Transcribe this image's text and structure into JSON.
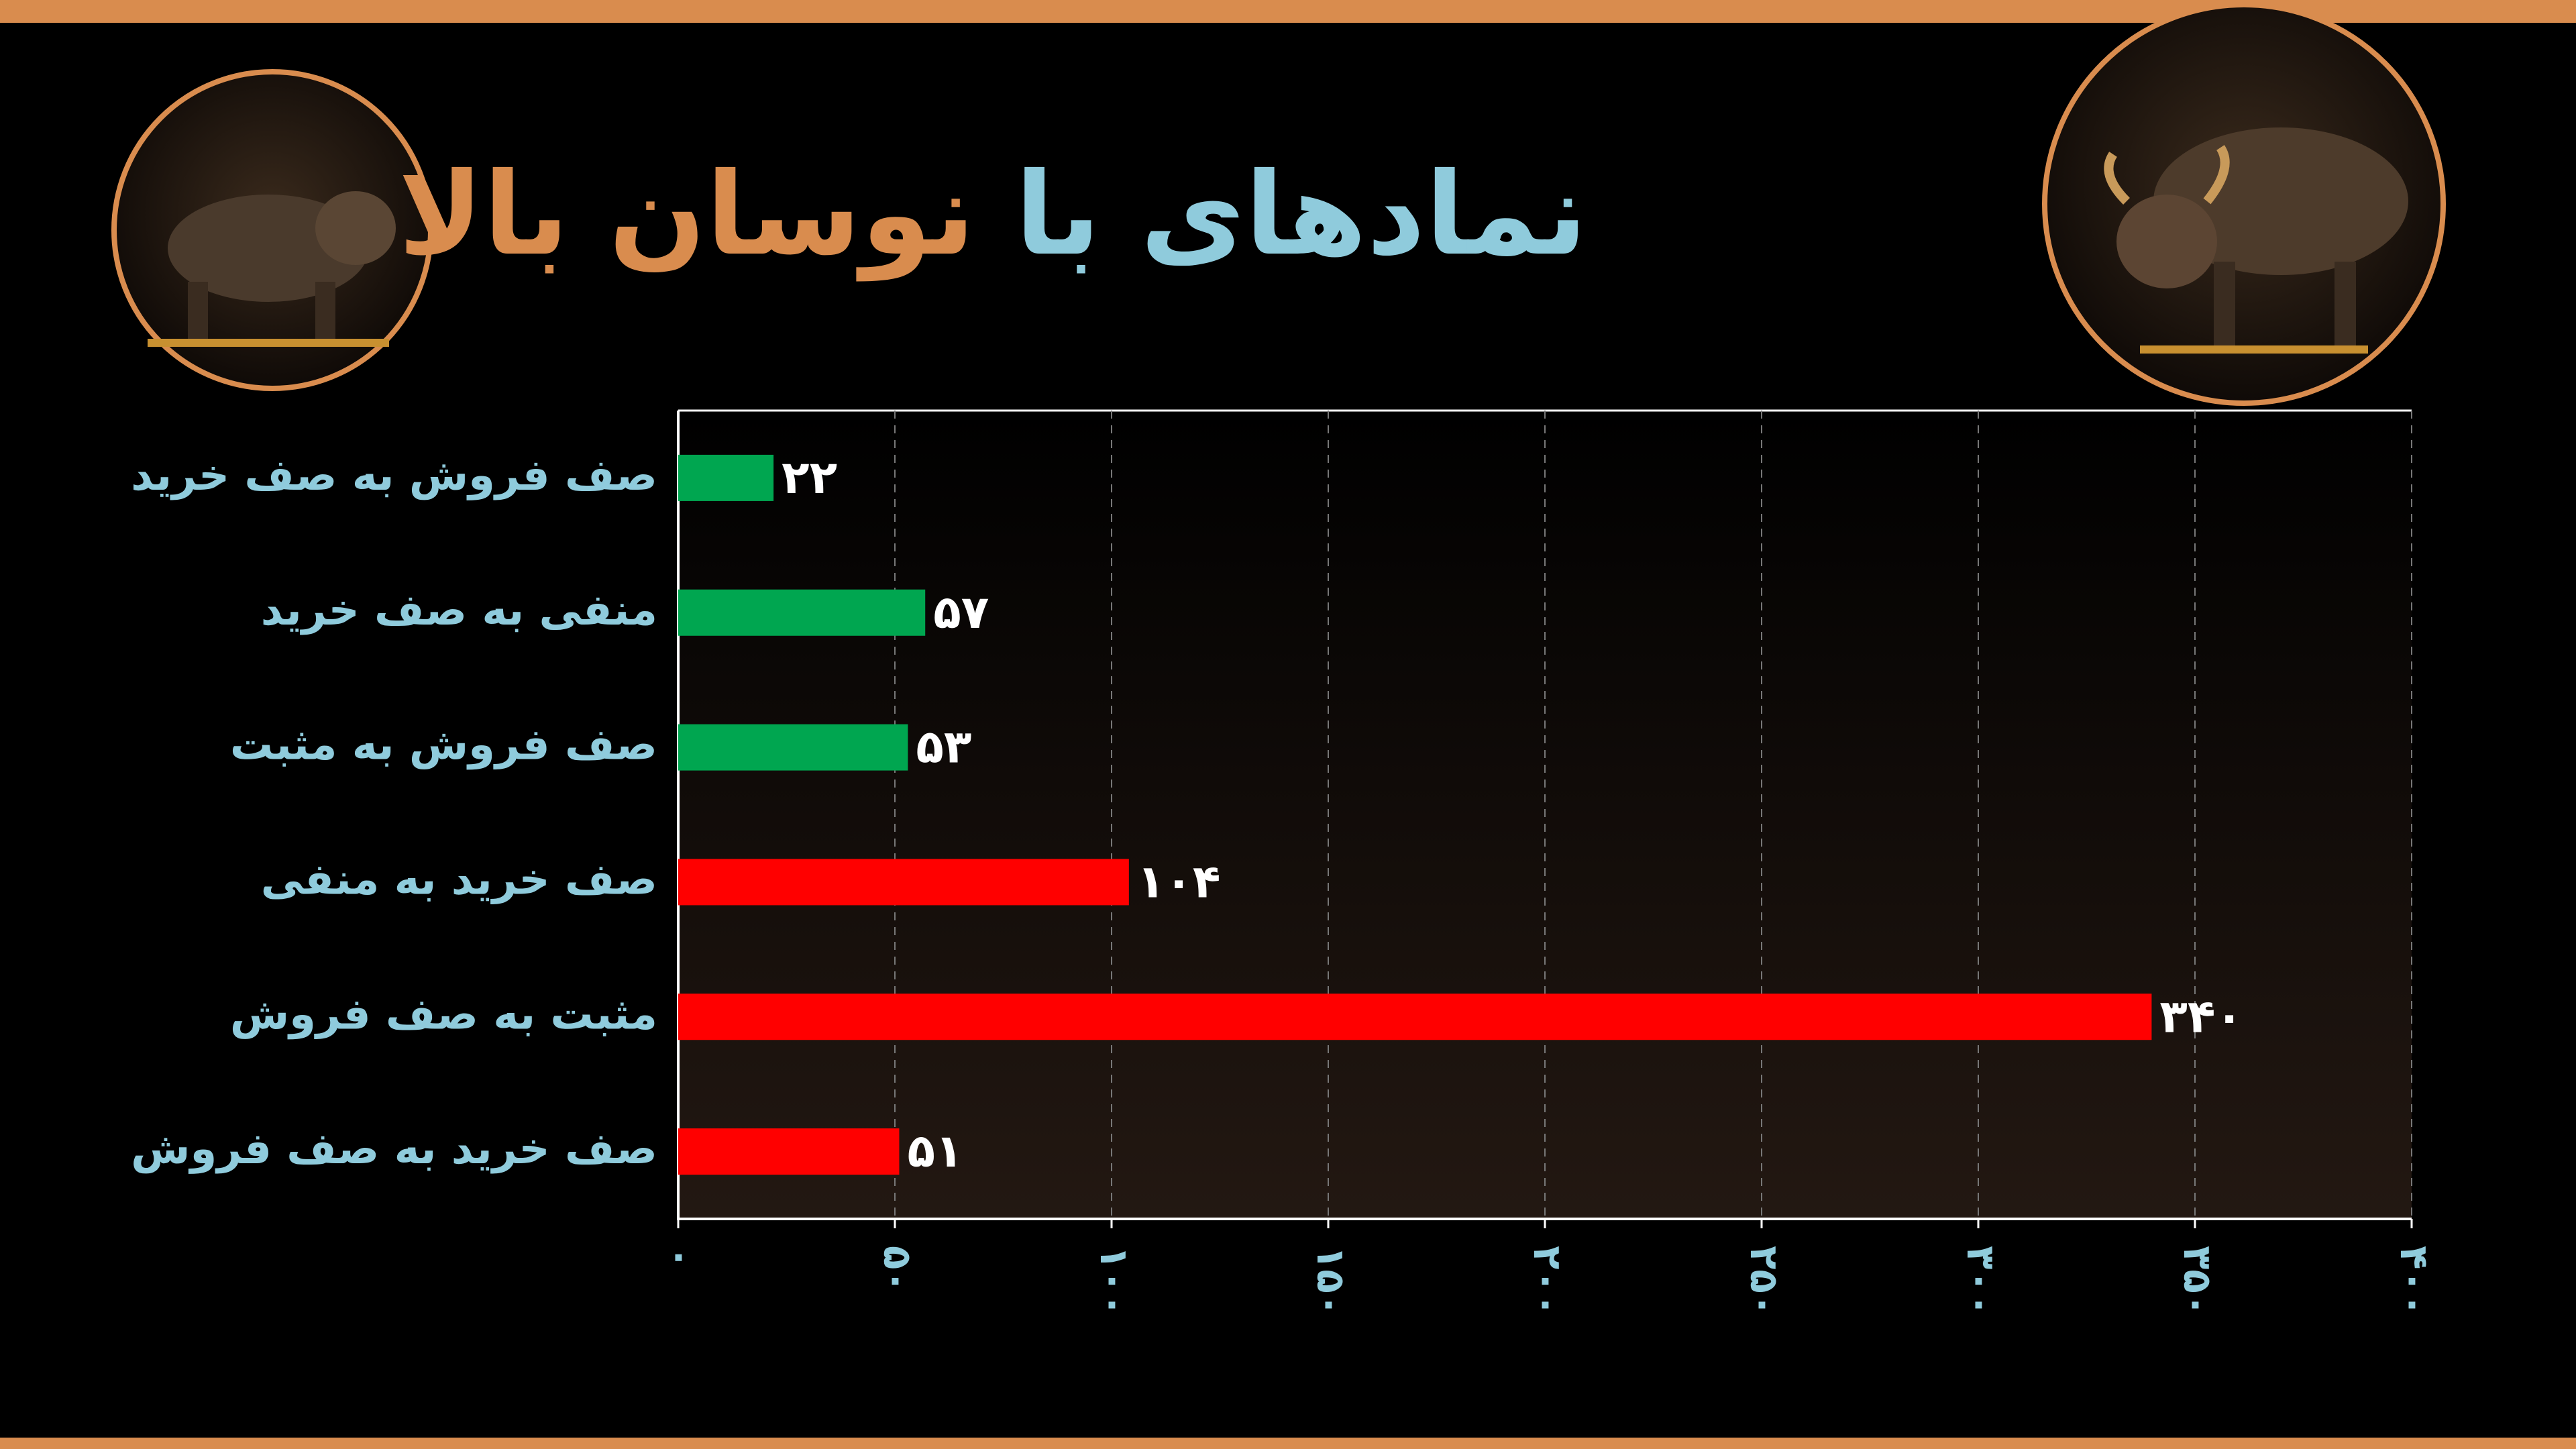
{
  "chart_data": {
    "type": "hbar",
    "title": [
      "نمادهای با",
      "نوسان بالا"
    ],
    "title_colors": [
      "#8fcbdc",
      "#d98c4e"
    ],
    "categories": [
      "صف فروش به صف خرید",
      "منفی به صف خرید",
      "صف فروش به مثبت",
      "صف خرید به منفی",
      "مثبت به صف فروش",
      "صف خرید به صف فروش"
    ],
    "values": [
      22,
      57,
      53,
      104,
      340,
      51
    ],
    "value_labels": [
      "۲۲",
      "۵۷",
      "۵۳",
      "۱۰۴",
      "۳۴۰",
      "۵۱"
    ],
    "colors": [
      "#00a650",
      "#00a650",
      "#00a650",
      "#ff0000",
      "#ff0000",
      "#ff0000"
    ],
    "xlim": [
      0,
      400
    ],
    "xticks": [
      {
        "value": 0,
        "label": "۰"
      },
      {
        "value": 50,
        "label": "۵۰"
      },
      {
        "value": 100,
        "label": "۱۰۰"
      },
      {
        "value": 150,
        "label": "۱۵۰"
      },
      {
        "value": 200,
        "label": "۲۰۰"
      },
      {
        "value": 250,
        "label": "۲۵۰"
      },
      {
        "value": 300,
        "label": "۳۰۰"
      },
      {
        "value": 350,
        "label": "۳۵۰"
      },
      {
        "value": 400,
        "label": "۴۰۰"
      }
    ],
    "grid": true
  }
}
